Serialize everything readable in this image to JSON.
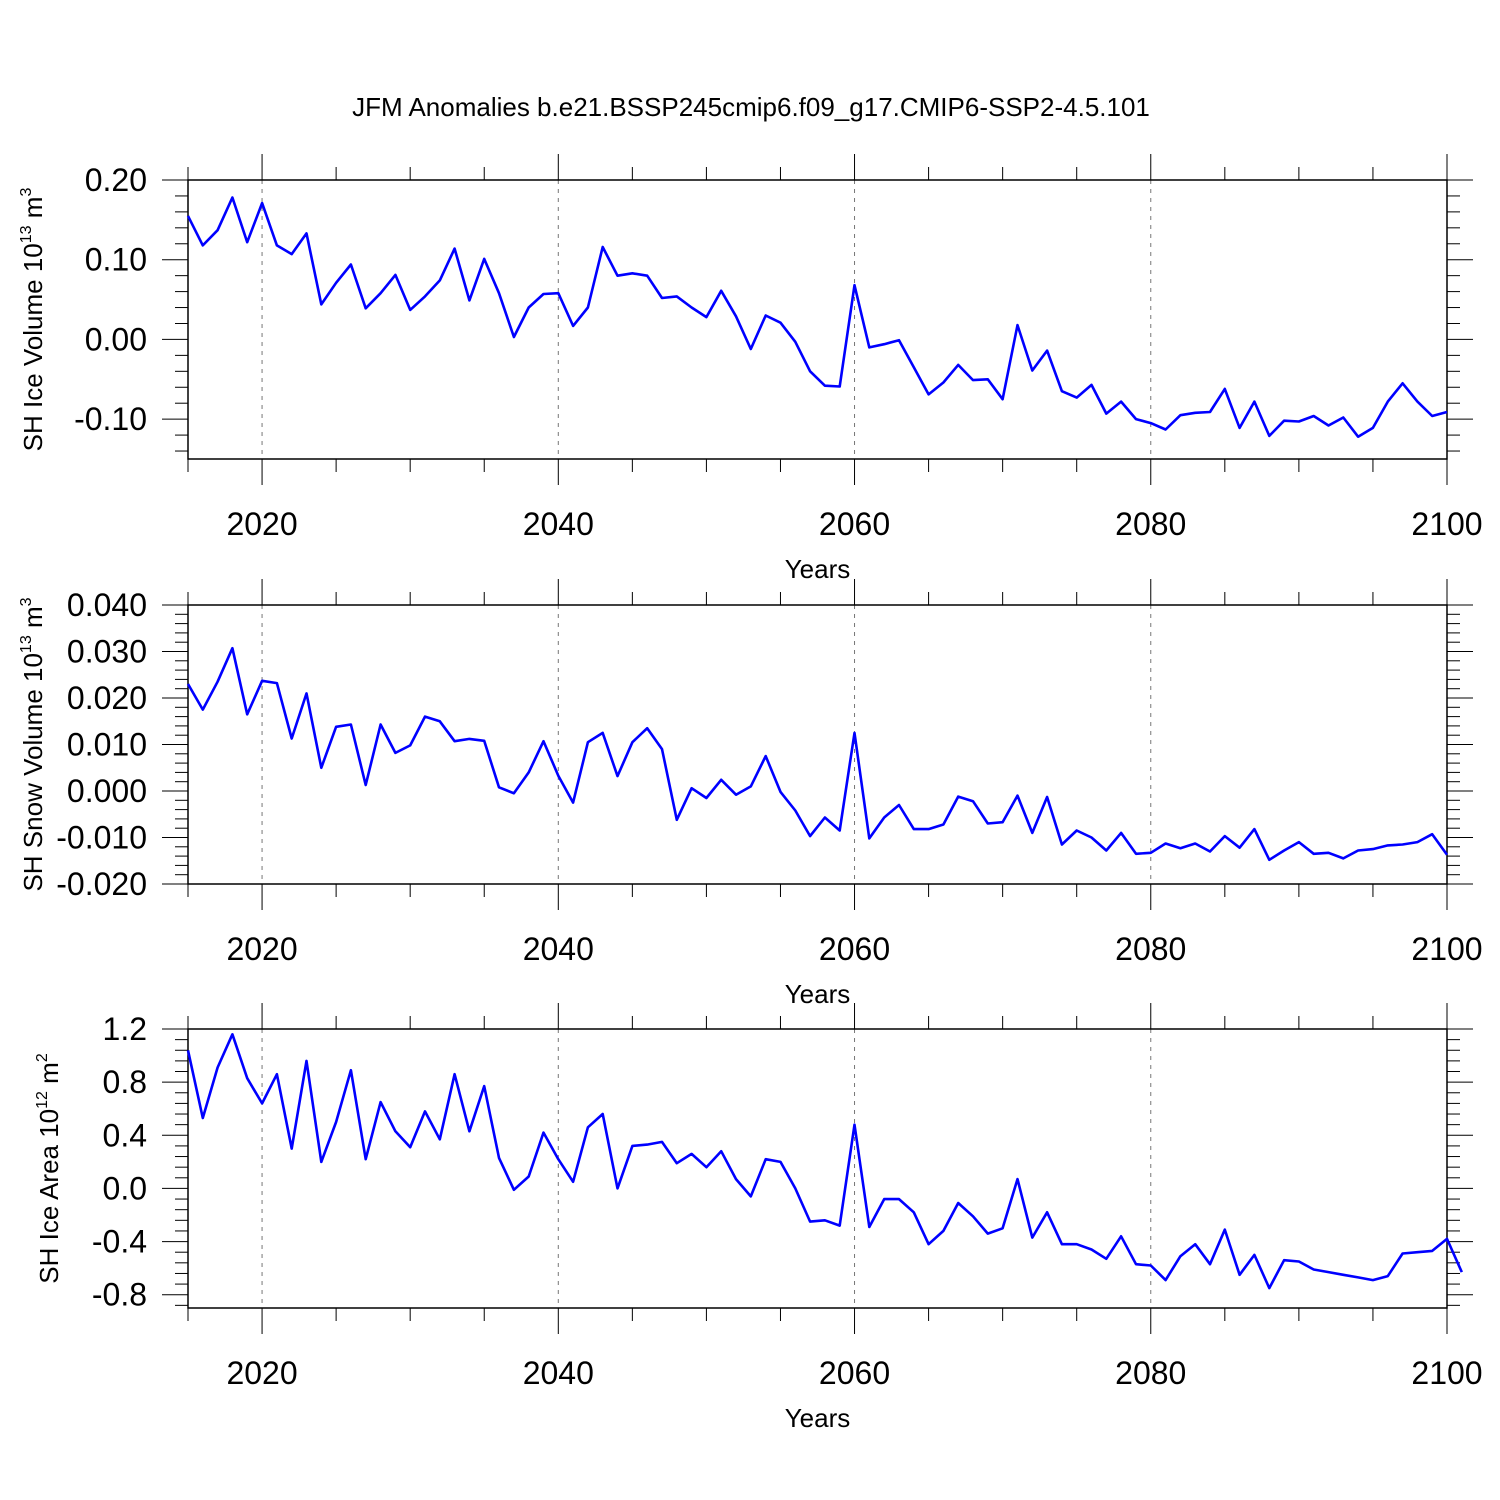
{
  "title": "JFM Anomalies b.e21.BSSP245cmip6.f09_g17.CMIP6-SSP2-4.5.101",
  "chart_data": [
    {
      "type": "line",
      "xlabel": "Years",
      "ylabel": {
        "base": "SH Ice Volume 10",
        "exp": "13",
        "unit": " m",
        "unit_exp": "3"
      },
      "xlim": [
        2015,
        2100
      ],
      "ylim": [
        -0.15,
        0.2
      ],
      "xticks": [
        2020,
        2040,
        2060,
        2080,
        2100
      ],
      "xtick_labels": [
        "2020",
        "2040",
        "2060",
        "2080",
        "2100"
      ],
      "yticks": [
        0.2,
        0.1,
        0.0,
        -0.1
      ],
      "ytick_labels": [
        "0.20",
        "0.10",
        "0.00",
        "-0.10"
      ],
      "grid": "dashed vertical lines at labeled x ticks",
      "color": "#0000ff",
      "x_start": 2015,
      "values": [
        0.155,
        0.118,
        0.137,
        0.178,
        0.122,
        0.171,
        0.118,
        0.107,
        0.133,
        0.044,
        0.071,
        0.094,
        0.039,
        0.058,
        0.081,
        0.037,
        0.054,
        0.074,
        0.114,
        0.049,
        0.101,
        0.058,
        0.003,
        0.04,
        0.057,
        0.058,
        0.017,
        0.04,
        0.116,
        0.08,
        0.083,
        0.08,
        0.052,
        0.054,
        0.04,
        0.028,
        0.061,
        0.029,
        -0.012,
        0.03,
        0.021,
        -0.003,
        -0.04,
        -0.058,
        -0.059,
        0.068,
        -0.01,
        -0.006,
        -0.001,
        -0.035,
        -0.069,
        -0.054,
        -0.032,
        -0.051,
        -0.05,
        -0.075,
        0.018,
        -0.039,
        -0.014,
        -0.065,
        -0.073,
        -0.057,
        -0.093,
        -0.078,
        -0.1,
        -0.105,
        -0.113,
        -0.095,
        -0.092,
        -0.091,
        -0.062,
        -0.111,
        -0.078,
        -0.121,
        -0.102,
        -0.103,
        -0.096,
        -0.108,
        -0.098,
        -0.122,
        -0.111,
        -0.078,
        -0.055,
        -0.078,
        -0.096,
        -0.091
      ]
    },
    {
      "type": "line",
      "xlabel": "Years",
      "ylabel": {
        "base": "SH Snow Volume 10",
        "exp": "13",
        "unit": " m",
        "unit_exp": "3"
      },
      "xlim": [
        2015,
        2100
      ],
      "ylim": [
        -0.02,
        0.04
      ],
      "xticks": [
        2020,
        2040,
        2060,
        2080,
        2100
      ],
      "xtick_labels": [
        "2020",
        "2040",
        "2060",
        "2080",
        "2100"
      ],
      "yticks": [
        0.04,
        0.03,
        0.02,
        0.01,
        0.0,
        -0.01,
        -0.02
      ],
      "ytick_labels": [
        "0.040",
        "0.030",
        "0.020",
        "0.010",
        "0.000",
        "-0.010",
        "-0.020"
      ],
      "grid": "dashed vertical lines at labeled x ticks",
      "color": "#0000ff",
      "x_start": 2015,
      "values": [
        0.023,
        0.0175,
        0.0235,
        0.0307,
        0.0165,
        0.0237,
        0.0232,
        0.0113,
        0.021,
        0.005,
        0.0138,
        0.0143,
        0.0013,
        0.0143,
        0.0082,
        0.0098,
        0.016,
        0.015,
        0.0107,
        0.0112,
        0.0108,
        0.0008,
        -0.0005,
        0.004,
        0.0107,
        0.0033,
        -0.0025,
        0.0105,
        0.0125,
        0.0032,
        0.0105,
        0.0135,
        0.009,
        -0.0062,
        0.0006,
        -0.0015,
        0.0024,
        -0.0008,
        0.001,
        0.0075,
        -0.0002,
        -0.0042,
        -0.0097,
        -0.0057,
        -0.0085,
        0.0125,
        -0.0102,
        -0.0057,
        -0.003,
        -0.0082,
        -0.0082,
        -0.0072,
        -0.0012,
        -0.0022,
        -0.007,
        -0.0067,
        -0.001,
        -0.009,
        -0.0013,
        -0.0115,
        -0.0085,
        -0.01,
        -0.0128,
        -0.009,
        -0.0135,
        -0.0133,
        -0.0113,
        -0.0123,
        -0.0113,
        -0.013,
        -0.0097,
        -0.0122,
        -0.0082,
        -0.0148,
        -0.0128,
        -0.011,
        -0.0135,
        -0.0133,
        -0.0145,
        -0.0128,
        -0.0125,
        -0.0117,
        -0.0115,
        -0.011,
        -0.0093,
        -0.0137
      ]
    },
    {
      "type": "line",
      "xlabel": "Years",
      "ylabel": {
        "base": "SH Ice Area 10",
        "exp": "12",
        "unit": " m",
        "unit_exp": "2"
      },
      "xlim": [
        2015,
        2100
      ],
      "ylim": [
        -0.9,
        1.2
      ],
      "xticks": [
        2020,
        2040,
        2060,
        2080,
        2100
      ],
      "xtick_labels": [
        "2020",
        "2040",
        "2060",
        "2080",
        "2100"
      ],
      "yticks": [
        1.2,
        0.8,
        0.4,
        0.0,
        -0.4,
        -0.8
      ],
      "ytick_labels": [
        "1.2",
        "0.8",
        "0.4",
        "0.0",
        "-0.4",
        "-0.8"
      ],
      "grid": "dashed vertical lines at labeled x ticks",
      "color": "#0000ff",
      "x_start": 2015,
      "values": [
        1.04,
        0.53,
        0.91,
        1.16,
        0.83,
        0.64,
        0.86,
        0.3,
        0.96,
        0.2,
        0.5,
        0.89,
        0.22,
        0.65,
        0.43,
        0.31,
        0.58,
        0.37,
        0.86,
        0.43,
        0.77,
        0.23,
        -0.01,
        0.09,
        0.42,
        0.22,
        0.05,
        0.46,
        0.56,
        0.0,
        0.32,
        0.33,
        0.35,
        0.19,
        0.26,
        0.16,
        0.28,
        0.07,
        -0.06,
        0.22,
        0.2,
        0.0,
        -0.25,
        -0.24,
        -0.28,
        0.48,
        -0.29,
        -0.08,
        -0.08,
        -0.18,
        -0.42,
        -0.32,
        -0.11,
        -0.21,
        -0.34,
        -0.3,
        0.07,
        -0.37,
        -0.18,
        -0.42,
        -0.42,
        -0.46,
        -0.53,
        -0.36,
        -0.57,
        -0.58,
        -0.69,
        -0.51,
        -0.42,
        -0.57,
        -0.31,
        -0.65,
        -0.5,
        -0.75,
        -0.54,
        -0.55,
        -0.61,
        -0.63,
        -0.65,
        -0.67,
        -0.69,
        -0.66,
        -0.49,
        -0.48,
        -0.47,
        -0.38,
        -0.63
      ]
    }
  ]
}
